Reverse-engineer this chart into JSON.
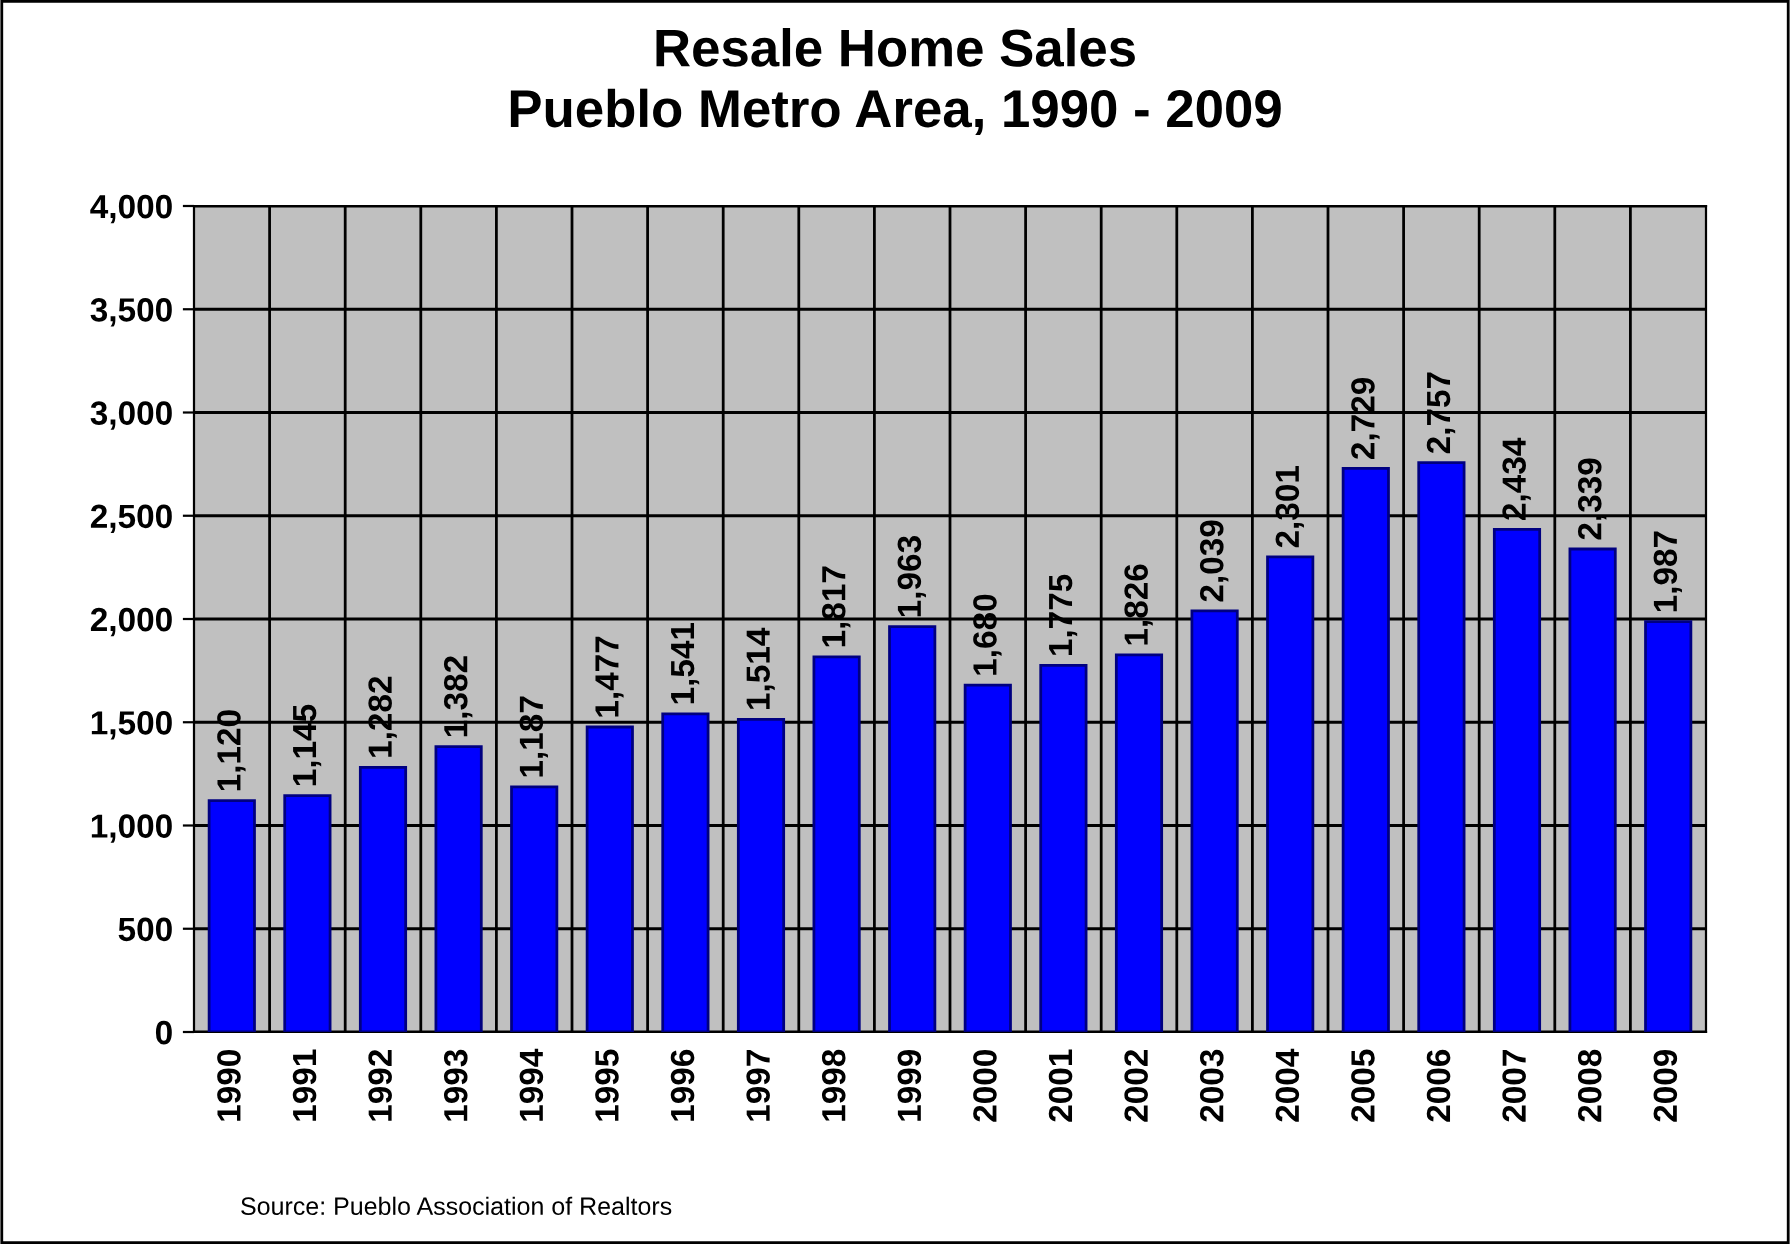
{
  "chart_data": {
    "type": "bar",
    "title": "Resale Home Sales\nPueblo Metro Area, 1990 - 2009",
    "categories": [
      "1990",
      "1991",
      "1992",
      "1993",
      "1994",
      "1995",
      "1996",
      "1997",
      "1998",
      "1999",
      "2000",
      "2001",
      "2002",
      "2003",
      "2004",
      "2005",
      "2006",
      "2007",
      "2008",
      "2009"
    ],
    "values": [
      1120,
      1145,
      1282,
      1382,
      1187,
      1477,
      1541,
      1514,
      1817,
      1963,
      1680,
      1775,
      1826,
      2039,
      2301,
      2729,
      2757,
      2434,
      2339,
      1987
    ],
    "value_labels": [
      "1,120",
      "1,145",
      "1,282",
      "1,382",
      "1,187",
      "1,477",
      "1,541",
      "1,514",
      "1,817",
      "1,963",
      "1,680",
      "1,775",
      "1,826",
      "2,039",
      "2,301",
      "2,729",
      "2,757",
      "2,434",
      "2,339",
      "1,987"
    ],
    "color": "#0000ff",
    "ylim": [
      0,
      4000
    ],
    "yticks": [
      {
        "value": 0,
        "label": "0"
      },
      {
        "value": 500,
        "label": "500"
      },
      {
        "value": 1000,
        "label": "1,000"
      },
      {
        "value": 1500,
        "label": "1,500"
      },
      {
        "value": 2000,
        "label": "2,000"
      },
      {
        "value": 2500,
        "label": "2,500"
      },
      {
        "value": 3000,
        "label": "3,000"
      },
      {
        "value": 3500,
        "label": "3,500"
      },
      {
        "value": 4000,
        "label": "4,000"
      }
    ],
    "grid": true,
    "annotations": [
      "Source: Pueblo Association of Realtors"
    ]
  }
}
